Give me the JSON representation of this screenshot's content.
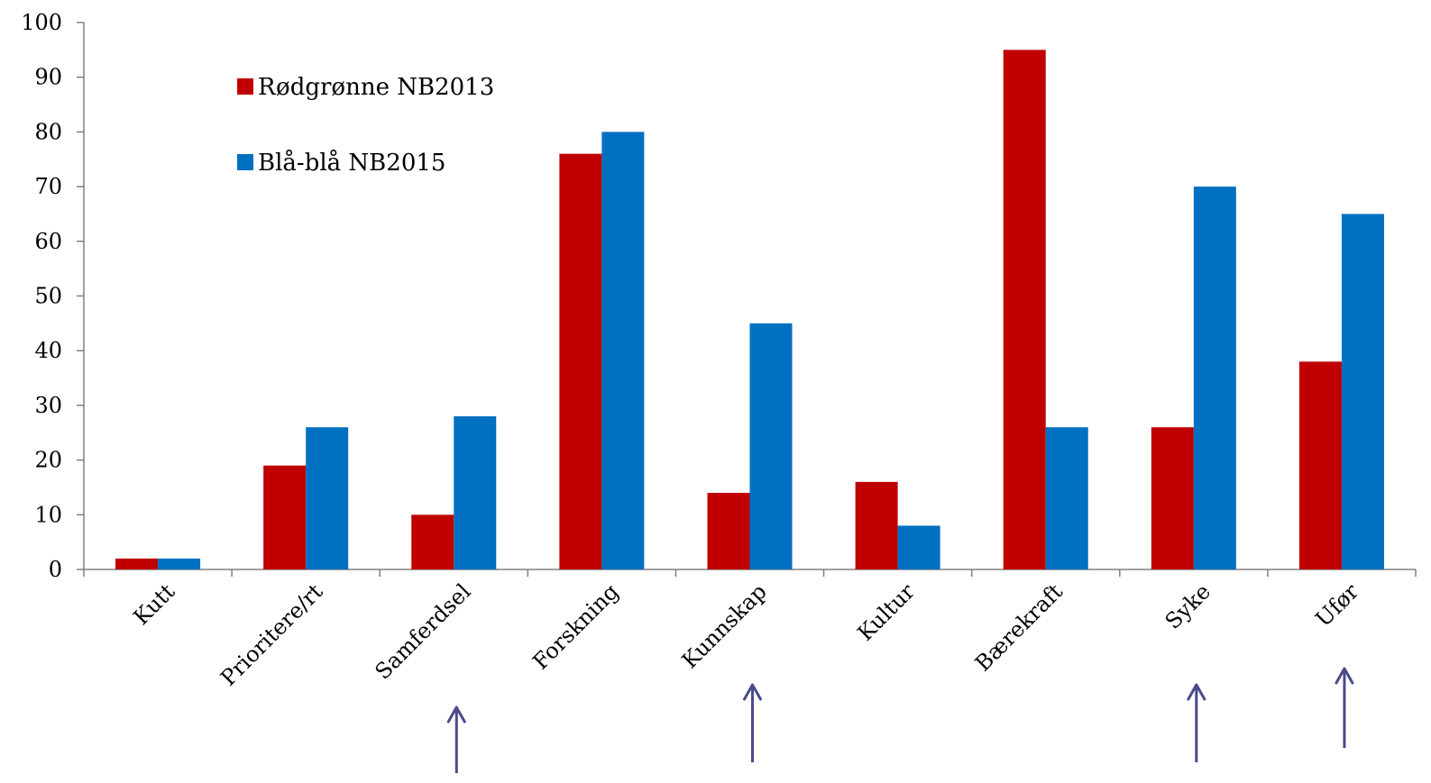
{
  "chart_data": {
    "type": "bar",
    "categories": [
      "Kutt",
      "Prioritere/rt",
      "Samferdsel",
      "Forskning",
      "Kunnskap",
      "Kultur",
      "Bærekraft",
      "Syke",
      "Ufør"
    ],
    "series": [
      {
        "name": "Rødgrønne NB2013",
        "color": "#C00000",
        "values": [
          2,
          19,
          10,
          76,
          14,
          16,
          95,
          26,
          38
        ]
      },
      {
        "name": "Blå-blå NB2015",
        "color": "#0070C0",
        "values": [
          2,
          26,
          28,
          80,
          45,
          8,
          26,
          70,
          65
        ]
      }
    ],
    "yticks": [
      "0",
      "10",
      "20",
      "30",
      "40",
      "50",
      "60",
      "70",
      "80",
      "90",
      "100"
    ],
    "ylim": [
      0,
      100
    ],
    "title": "",
    "xlabel": "",
    "ylabel": "",
    "grid": false,
    "legend_position": "top-left",
    "arrows": {
      "color": "#4A4A8C",
      "under_categories": [
        "Samferdsel",
        "Kunnskap",
        "Syke",
        "Ufør"
      ]
    }
  }
}
